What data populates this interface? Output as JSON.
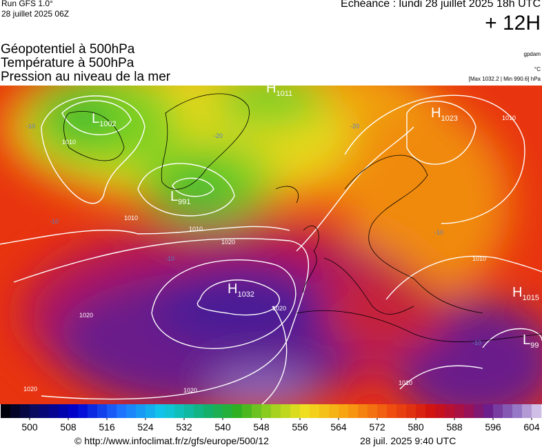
{
  "header": {
    "run": "Run GFS 1.0°",
    "run_date": "28 juillet 2025 06Z",
    "valid": "Echéance : lundi 28 juillet 2025 18h UTC",
    "lead": "+ 12H",
    "titles": [
      "Géopotentiel à 500hPa",
      "Température à 500hPa",
      "Pression au niveau de la mer"
    ],
    "unit_geo": "gpdam",
    "unit_temp": "°C",
    "pressure_range": "[Max 1032.2 | Min 990.6] hPa"
  },
  "map": {
    "centers": [
      {
        "letter": "L",
        "value": "1002"
      },
      {
        "letter": "L",
        "value": "991"
      },
      {
        "letter": "H",
        "value": "1032"
      },
      {
        "letter": "H",
        "value": "1023"
      },
      {
        "letter": "H",
        "value": "1015"
      },
      {
        "letter": "L",
        "value": "99"
      },
      {
        "letter": "H",
        "value": "1011"
      }
    ],
    "isobar_labels": [
      "1020",
      "1020",
      "1020",
      "1020",
      "1010",
      "1010",
      "1010",
      "1010",
      "1010",
      "1010",
      "1020"
    ],
    "temp_labels": [
      "-20",
      "-20",
      "-10",
      "-10",
      "-10",
      "-10",
      "-10"
    ]
  },
  "colorbar": {
    "lim": [
      494,
      606
    ],
    "ticks": [
      500,
      508,
      516,
      524,
      532,
      540,
      548,
      556,
      564,
      572,
      580,
      588,
      596,
      604
    ]
  },
  "footer": {
    "url": "© http://www.infoclimat.fr/z/gfs/europe/500/12",
    "timestamp": "28 juil. 2025  9:40 UTC"
  }
}
